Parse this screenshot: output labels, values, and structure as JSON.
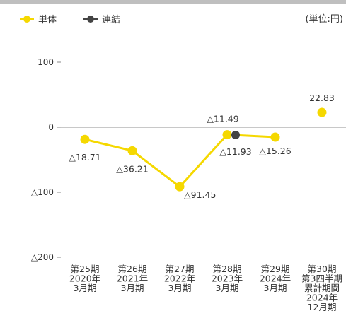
{
  "chart_data": {
    "type": "line",
    "unit_label": "(単位:円)",
    "categories": [
      [
        "第25期",
        "2020年",
        "3月期"
      ],
      [
        "第26期",
        "2021年",
        "3月期"
      ],
      [
        "第27期",
        "2022年",
        "3月期"
      ],
      [
        "第28期",
        "2023年",
        "3月期"
      ],
      [
        "第29期",
        "2024年",
        "3月期"
      ],
      [
        "第30期",
        "第3四半期",
        "累計期間",
        "2024年",
        "12月期"
      ]
    ],
    "series": [
      {
        "name": "単体",
        "color": "#f5d800",
        "values": [
          -18.71,
          -36.21,
          -91.45,
          -11.49,
          -15.26,
          22.83
        ],
        "labels": [
          "△18.71",
          "△36.21",
          "△91.45",
          "△11.49",
          "△15.26",
          "22.83"
        ],
        "connect_count": 5
      },
      {
        "name": "連結",
        "color": "#444444",
        "values": [
          null,
          null,
          null,
          -11.93,
          null,
          null
        ],
        "labels": [
          "",
          "",
          "",
          "△11.93",
          "",
          ""
        ]
      }
    ],
    "y_ticks": [
      {
        "value": 100,
        "label": "100"
      },
      {
        "value": 0,
        "label": "0"
      },
      {
        "value": -100,
        "label": "△100"
      },
      {
        "value": -200,
        "label": "△200"
      }
    ],
    "ylim": [
      -200,
      100
    ],
    "grid": false,
    "zero_line": true,
    "legend_position": "top-left"
  }
}
